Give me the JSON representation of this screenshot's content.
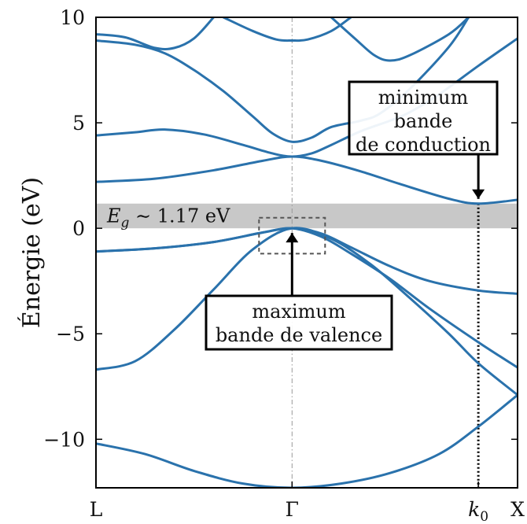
{
  "chart_data": {
    "type": "line",
    "ylabel": "Énergie (eV)",
    "ylim": [
      -12.3,
      10
    ],
    "k_points": {
      "labels": [
        "L",
        "Γ",
        "k",
        "X"
      ],
      "positions": [
        0,
        1,
        1.95,
        2.15
      ]
    },
    "k_point_sub": "0",
    "yticks": [
      -10,
      -5,
      0,
      5,
      10
    ],
    "ytick_labels": [
      "−10",
      "−5",
      "0",
      "5",
      "10"
    ],
    "line_color": "#2a72ac",
    "band_gap": {
      "label_main": "E",
      "label_sub": "g",
      "label_tail": " ∼ 1.17 eV",
      "ymin": 0,
      "ymax": 1.17,
      "color": "#c8c8c8"
    },
    "annotations": [
      {
        "lines": [
          "minimum",
          "bande",
          "de conduction"
        ],
        "target_k": 1.95,
        "target_e": 1.17
      },
      {
        "lines": [
          "maximum",
          "bande de valence"
        ],
        "target_k": 1.0,
        "target_e": 0
      }
    ],
    "series": [
      {
        "values": [
          [
            0.0,
            -10.2
          ],
          [
            0.25,
            -10.7
          ],
          [
            0.5,
            -11.5
          ],
          [
            0.75,
            -12.1
          ],
          [
            1.0,
            -12.3
          ],
          [
            1.25,
            -12.1
          ],
          [
            1.5,
            -11.6
          ],
          [
            1.75,
            -10.7
          ],
          [
            1.95,
            -9.4
          ],
          [
            2.15,
            -7.9
          ]
        ]
      },
      {
        "values": [
          [
            0.0,
            -6.7
          ],
          [
            0.2,
            -6.3
          ],
          [
            0.4,
            -4.8
          ],
          [
            0.6,
            -2.9
          ],
          [
            0.8,
            -1.0
          ],
          [
            1.0,
            0.0
          ],
          [
            1.2,
            -0.5
          ],
          [
            1.4,
            -1.7
          ],
          [
            1.6,
            -3.3
          ],
          [
            1.8,
            -5.0
          ],
          [
            1.95,
            -6.4
          ],
          [
            2.15,
            -7.9
          ]
        ]
      },
      {
        "values": [
          [
            0.0,
            -1.1
          ],
          [
            0.3,
            -0.95
          ],
          [
            0.6,
            -0.65
          ],
          [
            0.85,
            -0.2
          ],
          [
            1.0,
            0.0
          ],
          [
            1.15,
            -0.25
          ],
          [
            1.3,
            -0.9
          ],
          [
            1.5,
            -1.8
          ],
          [
            1.7,
            -2.5
          ],
          [
            1.95,
            -2.95
          ],
          [
            2.15,
            -3.1
          ]
        ]
      },
      {
        "values": [
          [
            0.0,
            -1.1
          ],
          [
            0.3,
            -0.95
          ],
          [
            0.6,
            -0.65
          ],
          [
            0.85,
            -0.2
          ],
          [
            1.0,
            0.0
          ],
          [
            1.15,
            -0.4
          ],
          [
            1.3,
            -1.2
          ],
          [
            1.5,
            -2.4
          ],
          [
            1.7,
            -3.8
          ],
          [
            1.95,
            -5.4
          ],
          [
            2.15,
            -6.6
          ]
        ]
      },
      {
        "values": [
          [
            0.0,
            2.2
          ],
          [
            0.3,
            2.35
          ],
          [
            0.6,
            2.75
          ],
          [
            0.85,
            3.2
          ],
          [
            1.0,
            3.4
          ],
          [
            1.15,
            3.2
          ],
          [
            1.35,
            2.7
          ],
          [
            1.55,
            2.1
          ],
          [
            1.8,
            1.4
          ],
          [
            1.95,
            1.17
          ],
          [
            2.15,
            1.35
          ]
        ]
      },
      {
        "values": [
          [
            0.0,
            4.4
          ],
          [
            0.2,
            4.55
          ],
          [
            0.35,
            4.68
          ],
          [
            0.55,
            4.45
          ],
          [
            0.75,
            3.95
          ],
          [
            0.9,
            3.55
          ],
          [
            1.0,
            3.4
          ],
          [
            1.1,
            3.55
          ],
          [
            1.2,
            3.95
          ],
          [
            1.35,
            4.6
          ],
          [
            1.5,
            5.1
          ],
          [
            1.6,
            5.5
          ],
          [
            1.75,
            6.35
          ],
          [
            1.95,
            7.7
          ],
          [
            2.15,
            9.0
          ]
        ]
      },
      {
        "values": [
          [
            0.0,
            8.9
          ],
          [
            0.2,
            8.7
          ],
          [
            0.35,
            8.3
          ],
          [
            0.5,
            7.5
          ],
          [
            0.65,
            6.5
          ],
          [
            0.8,
            5.3
          ],
          [
            0.9,
            4.5
          ],
          [
            1.0,
            4.1
          ],
          [
            1.1,
            4.3
          ],
          [
            1.2,
            4.8
          ],
          [
            1.35,
            5.1
          ],
          [
            1.45,
            5.45
          ],
          [
            1.6,
            6.6
          ],
          [
            1.8,
            8.6
          ],
          [
            1.9,
            10.0
          ]
        ]
      },
      {
        "values": [
          [
            0.0,
            9.2
          ],
          [
            0.15,
            9.05
          ],
          [
            0.3,
            8.55
          ],
          [
            0.4,
            8.55
          ],
          [
            0.5,
            9.0
          ],
          [
            0.6,
            10.0
          ]
        ]
      },
      {
        "values": [
          [
            0.65,
            10.0
          ],
          [
            0.8,
            9.35
          ],
          [
            0.92,
            8.95
          ],
          [
            1.0,
            8.9
          ],
          [
            1.08,
            8.95
          ],
          [
            1.2,
            9.35
          ],
          [
            1.3,
            10.0
          ]
        ]
      },
      {
        "values": [
          [
            1.2,
            10.0
          ],
          [
            1.32,
            9.0
          ],
          [
            1.42,
            8.2
          ],
          [
            1.5,
            7.95
          ],
          [
            1.6,
            8.2
          ],
          [
            1.8,
            9.2
          ],
          [
            1.9,
            10.0
          ]
        ]
      }
    ]
  }
}
